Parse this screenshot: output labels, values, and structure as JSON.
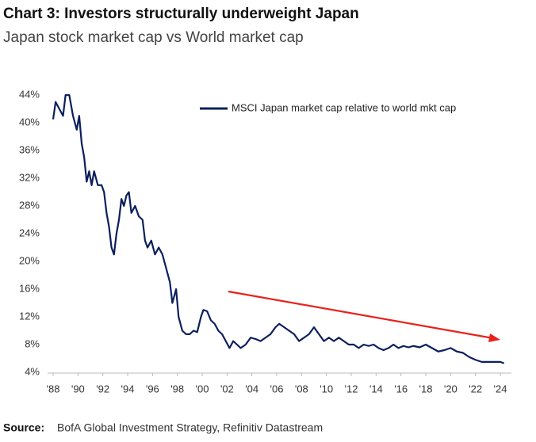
{
  "chart_data": {
    "type": "line",
    "title": "Chart 3: Investors structurally underweight Japan",
    "subtitle": "Japan stock market cap vs World market cap",
    "source_label": "Source:",
    "source": "BofA Global Investment Strategy, Refinitiv Datastream",
    "legend": "upper right",
    "xlim": [
      1988,
      2024
    ],
    "ylim": [
      4,
      44
    ],
    "xticks": [
      {
        "value": 1988,
        "label": "'88"
      },
      {
        "value": 1990,
        "label": "'90"
      },
      {
        "value": 1992,
        "label": "'92"
      },
      {
        "value": 1994,
        "label": "'94"
      },
      {
        "value": 1996,
        "label": "'96"
      },
      {
        "value": 1998,
        "label": "'98"
      },
      {
        "value": 2000,
        "label": "'00"
      },
      {
        "value": 2002,
        "label": "'02"
      },
      {
        "value": 2004,
        "label": "'04"
      },
      {
        "value": 2006,
        "label": "'06"
      },
      {
        "value": 2008,
        "label": "'08"
      },
      {
        "value": 2010,
        "label": "'10"
      },
      {
        "value": 2012,
        "label": "'12"
      },
      {
        "value": 2014,
        "label": "'14"
      },
      {
        "value": 2016,
        "label": "'16"
      },
      {
        "value": 2018,
        "label": "'18"
      },
      {
        "value": 2020,
        "label": "'20"
      },
      {
        "value": 2022,
        "label": "'22"
      },
      {
        "value": 2024,
        "label": "'24"
      }
    ],
    "yticks": [
      {
        "value": 4,
        "label": "4%"
      },
      {
        "value": 8,
        "label": "8%"
      },
      {
        "value": 12,
        "label": "12%"
      },
      {
        "value": 16,
        "label": "16%"
      },
      {
        "value": 20,
        "label": "20%"
      },
      {
        "value": 24,
        "label": "24%"
      },
      {
        "value": 28,
        "label": "28%"
      },
      {
        "value": 32,
        "label": "32%"
      },
      {
        "value": 36,
        "label": "36%"
      },
      {
        "value": 40,
        "label": "40%"
      },
      {
        "value": 44,
        "label": "44%"
      }
    ],
    "x": [
      1988.0,
      1988.2,
      1988.5,
      1988.8,
      1989.0,
      1989.3,
      1989.6,
      1989.9,
      1990.1,
      1990.3,
      1990.5,
      1990.7,
      1990.9,
      1991.1,
      1991.3,
      1991.6,
      1991.9,
      1992.1,
      1992.3,
      1992.5,
      1992.7,
      1992.9,
      1993.1,
      1993.3,
      1993.5,
      1993.7,
      1993.9,
      1994.1,
      1994.3,
      1994.6,
      1994.9,
      1995.2,
      1995.4,
      1995.6,
      1995.9,
      1996.2,
      1996.5,
      1996.8,
      1997.1,
      1997.4,
      1997.6,
      1997.9,
      1998.1,
      1998.4,
      1998.7,
      1999.0,
      1999.3,
      1999.6,
      1999.9,
      2000.1,
      2000.4,
      2000.7,
      2001.0,
      2001.3,
      2001.6,
      2001.9,
      2002.2,
      2002.5,
      2002.8,
      2003.1,
      2003.5,
      2003.9,
      2004.3,
      2004.7,
      2005.1,
      2005.5,
      2005.9,
      2006.2,
      2006.6,
      2007.0,
      2007.4,
      2007.8,
      2008.2,
      2008.6,
      2009.0,
      2009.4,
      2009.8,
      2010.2,
      2010.6,
      2011.0,
      2011.4,
      2011.8,
      2012.2,
      2012.6,
      2013.0,
      2013.4,
      2013.8,
      2014.2,
      2014.6,
      2015.0,
      2015.4,
      2015.8,
      2016.2,
      2016.6,
      2017.0,
      2017.5,
      2018.0,
      2018.5,
      2019.0,
      2019.5,
      2020.0,
      2020.5,
      2021.0,
      2021.5,
      2022.0,
      2022.5,
      2023.0,
      2023.5,
      2024.0,
      2024.3
    ],
    "series": [
      {
        "name": "MSCI Japan market cap relative to world mkt cap",
        "color": "#0b1f5c",
        "values": [
          40.5,
          43,
          42,
          41,
          44,
          44,
          41,
          39,
          41,
          37,
          35,
          31.5,
          33,
          31,
          33,
          31,
          31,
          30,
          27,
          25,
          22,
          21,
          24,
          26,
          29,
          28,
          29.5,
          30,
          27,
          28,
          26.5,
          26,
          23,
          22,
          23,
          21,
          22,
          21,
          19,
          17,
          14,
          16,
          12,
          10,
          9.5,
          9.5,
          10,
          9.8,
          12,
          13,
          12.8,
          11.5,
          11,
          10,
          9.5,
          8.5,
          7.5,
          8.5,
          8,
          7.5,
          8,
          9,
          8.8,
          8.5,
          9,
          9.5,
          10.5,
          11,
          10.5,
          10,
          9.5,
          8.5,
          9,
          9.5,
          10.5,
          9.5,
          8.5,
          9,
          8.5,
          9,
          8.5,
          8,
          8,
          7.5,
          8,
          7.8,
          8,
          7.5,
          7.2,
          7.5,
          8,
          7.5,
          7.8,
          7.6,
          7.8,
          7.6,
          8,
          7.5,
          7,
          7.2,
          7.5,
          7,
          6.8,
          6.2,
          5.8,
          5.5,
          5.5,
          5.5,
          5.5,
          5.3
        ]
      }
    ]
  }
}
